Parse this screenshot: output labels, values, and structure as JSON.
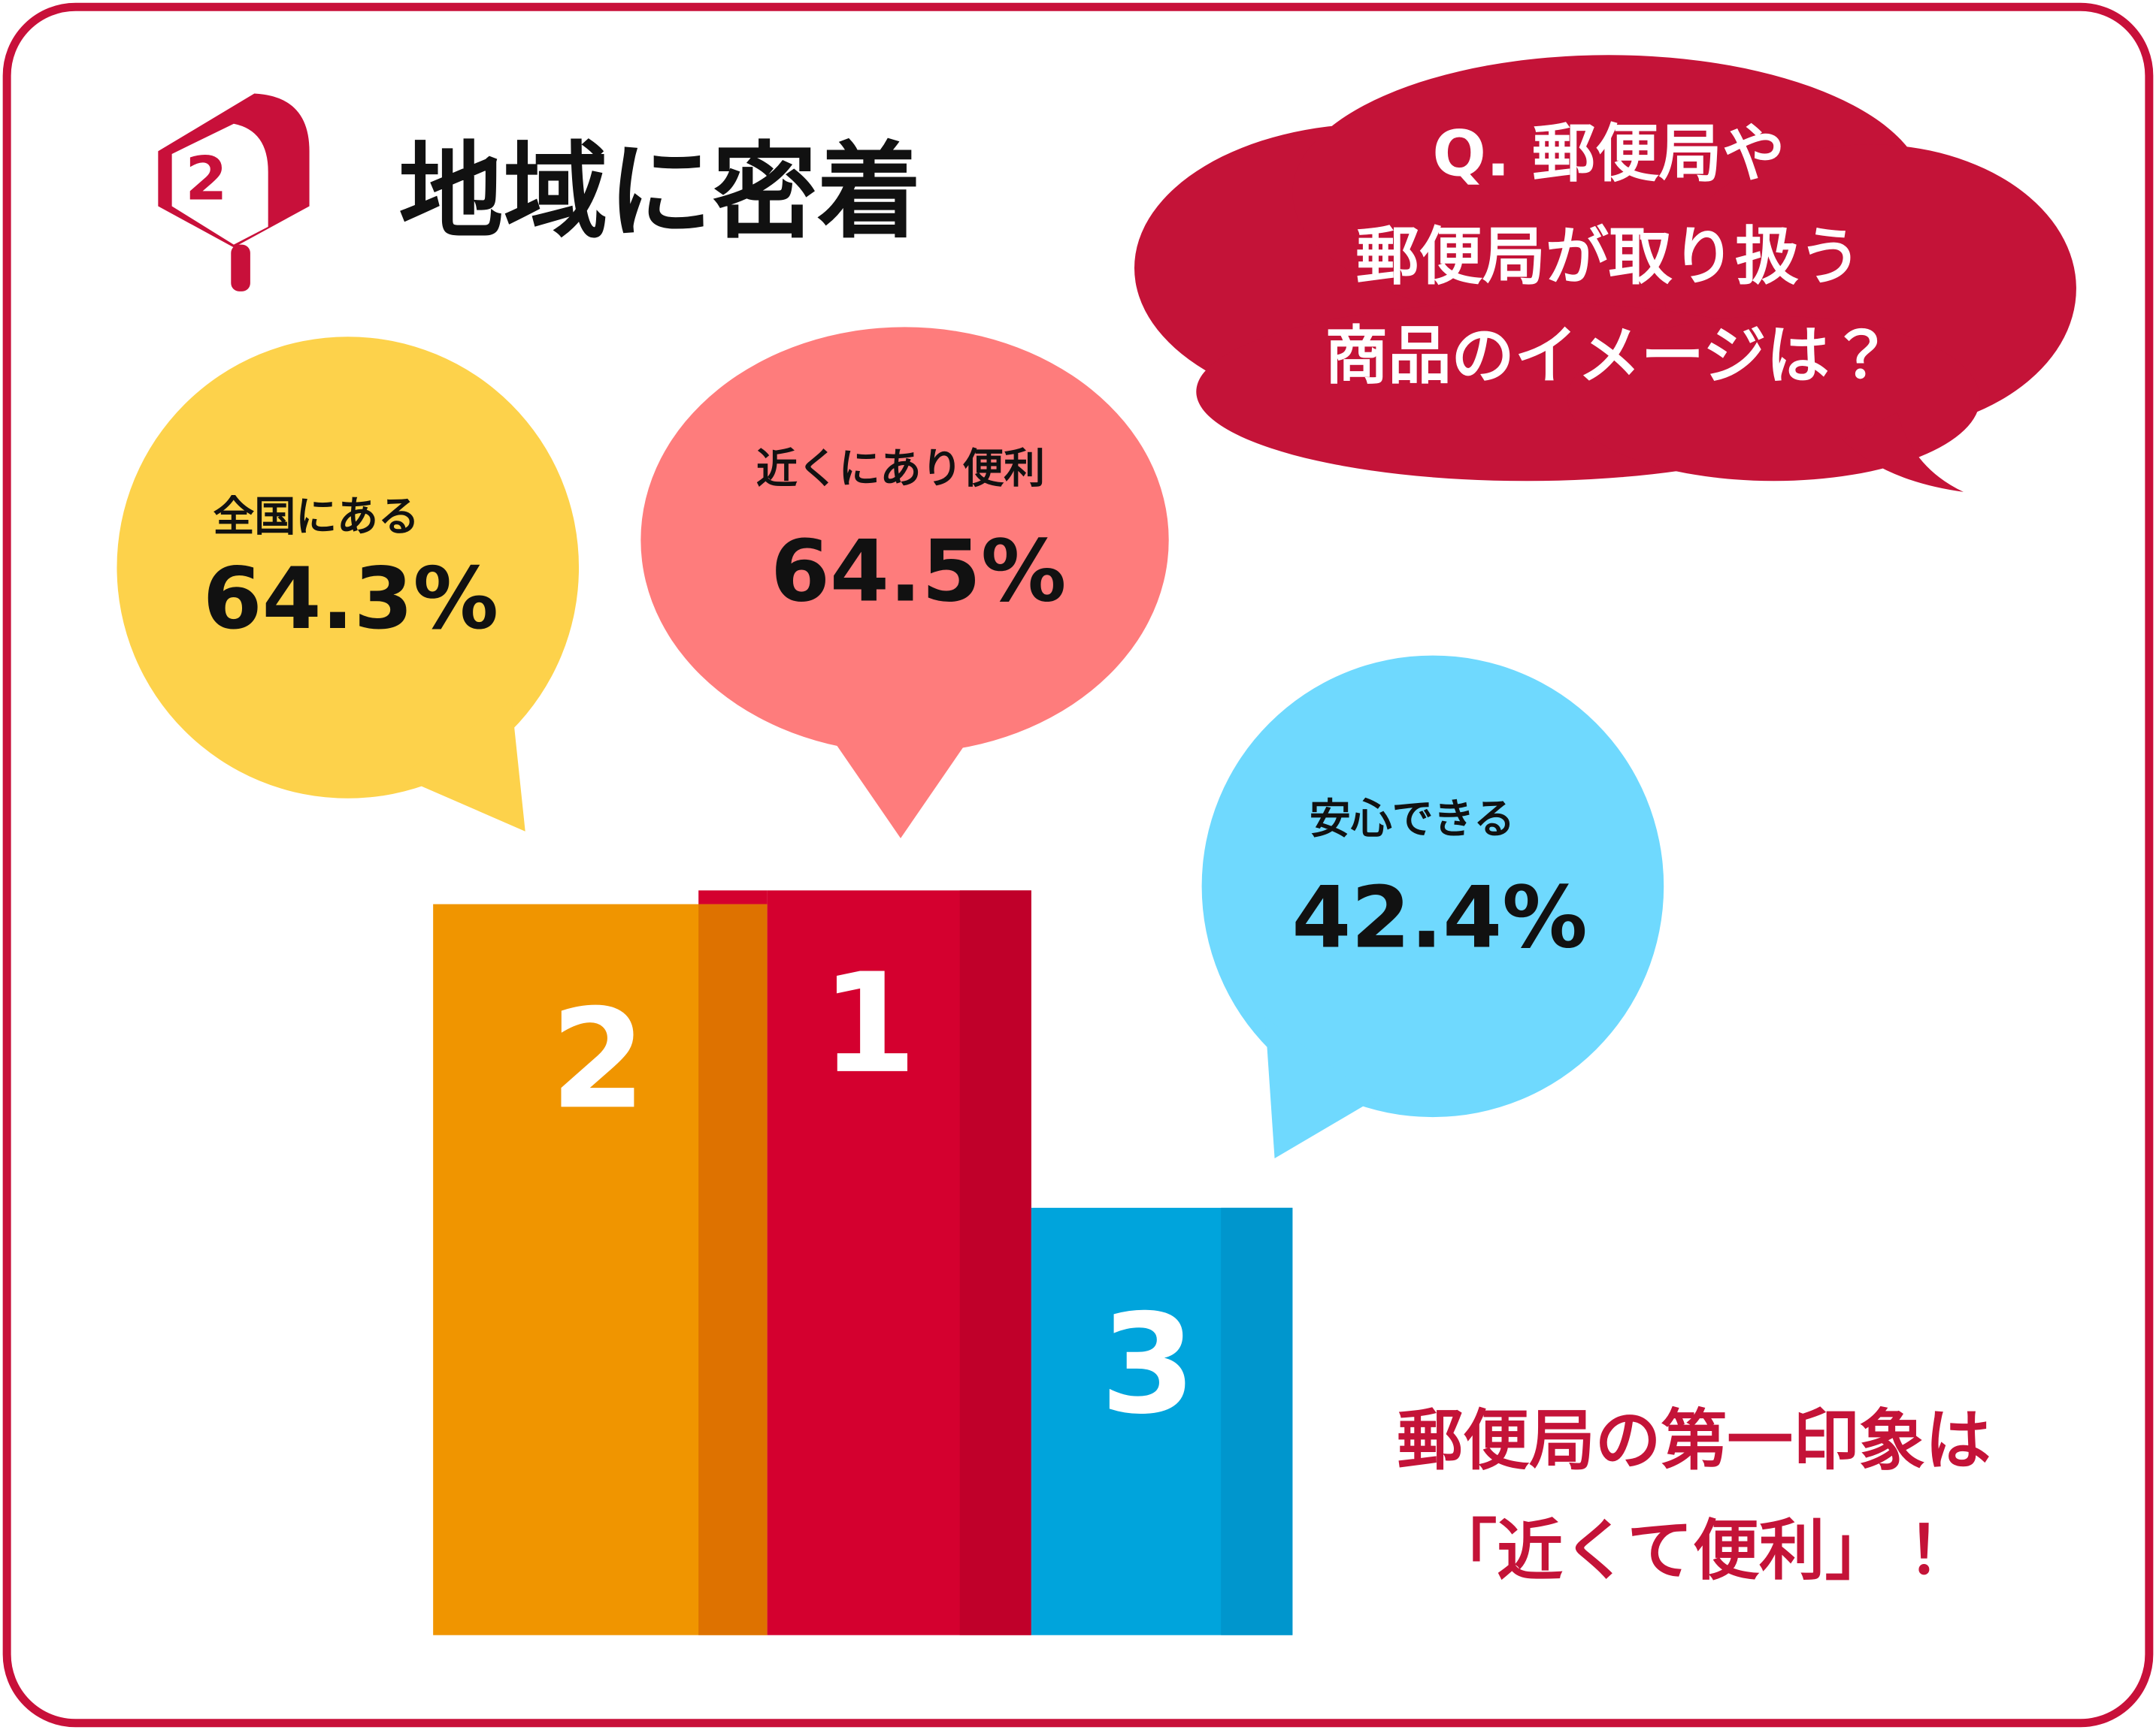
{
  "header": {
    "badge": "2",
    "title": "地域に密着"
  },
  "question": [
    "Q. 郵便局や",
    "郵便局が取り扱う",
    "商品のイメージは？"
  ],
  "items": [
    {
      "rank": "2",
      "label": "全国にある",
      "value": "64.3%"
    },
    {
      "rank": "1",
      "label": "近くにあり便利",
      "value": "64.5%"
    },
    {
      "rank": "3",
      "label": "安心できる",
      "value": "42.4%"
    }
  ],
  "conclusion": [
    "郵便局の第一印象は",
    "「近くて便利」！"
  ]
}
